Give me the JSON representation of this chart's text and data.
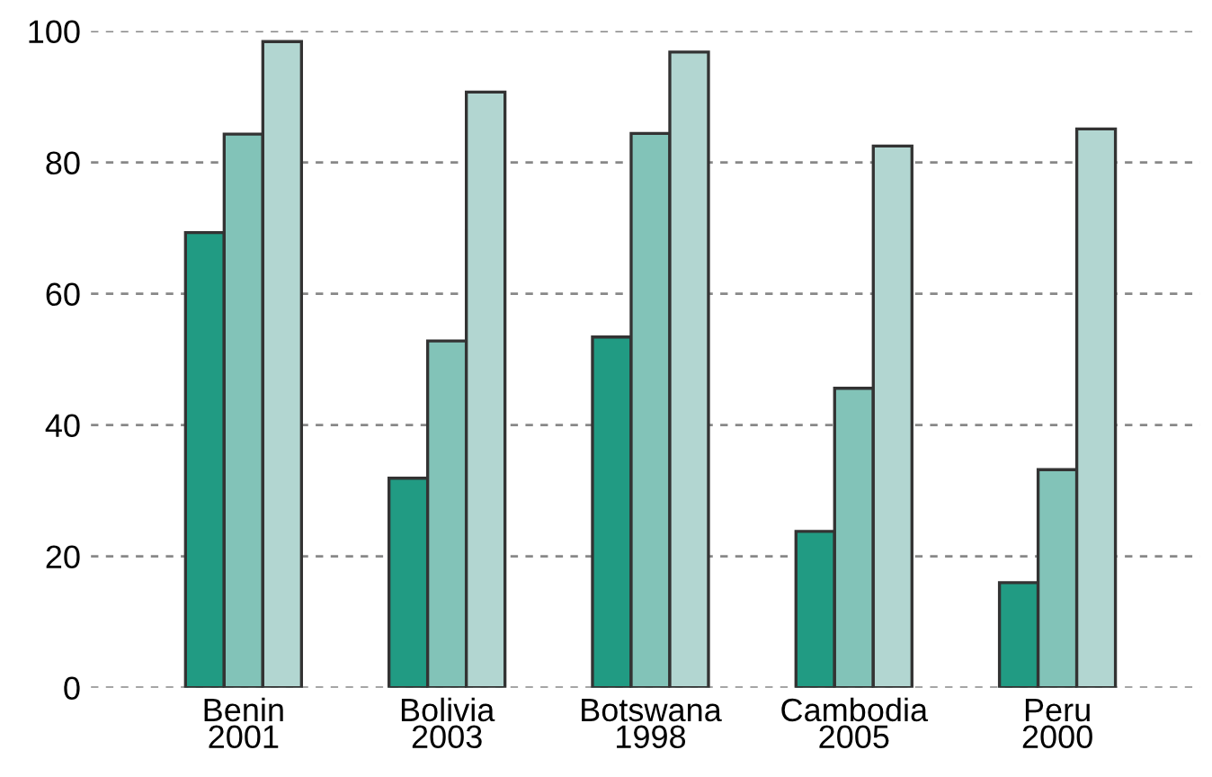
{
  "chart_data": {
    "type": "bar",
    "categories": [
      "Benin\n2001",
      "Bolivia\n2003",
      "Botswana\n1998",
      "Cambodia\n2005",
      "Peru\n2000"
    ],
    "series": [
      {
        "color": "#219b83",
        "values": [
          69.3,
          31.9,
          53.4,
          23.8,
          16
        ]
      },
      {
        "color": "#82c3b8",
        "values": [
          84.3,
          52.8,
          84.4,
          45.6,
          33.2
        ]
      },
      {
        "color": "#b2d6d1",
        "values": [
          98.4,
          90.7,
          96.8,
          82.5,
          85.1
        ]
      }
    ],
    "ylim": [
      0,
      100
    ],
    "yticks": [
      0,
      20,
      40,
      60,
      80,
      100
    ],
    "grid": "y"
  }
}
